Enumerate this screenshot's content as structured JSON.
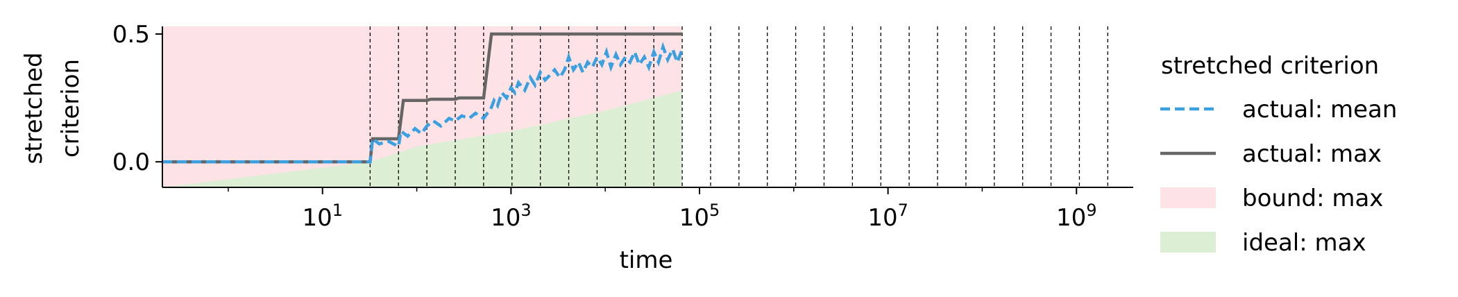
{
  "chart_data": {
    "type": "line",
    "xlabel": "time",
    "ylabel": [
      "stretched",
      "criterion"
    ],
    "xscale": "log",
    "xlim": [
      0.2,
      4000000000
    ],
    "ylim": [
      -0.1,
      0.53
    ],
    "x_ticks": [
      {
        "base": "10",
        "exp": "1",
        "value": 10
      },
      {
        "base": "10",
        "exp": "3",
        "value": 1000
      },
      {
        "base": "10",
        "exp": "5",
        "value": 100000
      },
      {
        "base": "10",
        "exp": "7",
        "value": 10000000
      },
      {
        "base": "10",
        "exp": "9",
        "value": 1000000000
      }
    ],
    "y_ticks": [
      {
        "label": "0.0",
        "value": 0.0
      },
      {
        "label": "0.5",
        "value": 0.5
      }
    ],
    "vlines": [
      32,
      64,
      128,
      256,
      512,
      1024,
      2048,
      4096,
      8192,
      16384,
      32768,
      65536,
      131072,
      262144,
      524288,
      1048576,
      2097152,
      4194304,
      8388608,
      16777216,
      33554432,
      67108864,
      134217728,
      268435456,
      536870912,
      1073741824,
      2147483648
    ],
    "legend_title": "stretched criterion",
    "legend_position": "right",
    "colors": {
      "mean": "#3aa0e0",
      "max": "#666666",
      "bound": "#fde2e6",
      "ideal": "#dcefd5"
    },
    "series": [
      {
        "name": "actual: mean",
        "style": "dashed",
        "x": [
          0.2,
          32,
          34,
          40,
          50,
          64,
          68,
          80,
          96,
          112,
          128,
          150,
          180,
          220,
          256,
          300,
          360,
          420,
          512,
          560,
          600,
          660,
          720,
          800,
          900,
          1000,
          1100,
          1200,
          1400,
          1600,
          1800,
          2048,
          2300,
          2600,
          2900,
          3300,
          3700,
          4096,
          4600,
          5200,
          5800,
          6500,
          7300,
          8192,
          9200,
          10300,
          11500,
          13000,
          14500,
          16384,
          18300,
          20500,
          23000,
          26000,
          29000,
          32768,
          36700,
          41000,
          46000,
          52000,
          58000,
          65536
        ],
        "y": [
          0.0,
          0.0,
          0.09,
          0.07,
          0.08,
          0.06,
          0.12,
          0.1,
          0.13,
          0.11,
          0.14,
          0.16,
          0.14,
          0.17,
          0.16,
          0.18,
          0.17,
          0.19,
          0.17,
          0.19,
          0.2,
          0.24,
          0.22,
          0.27,
          0.25,
          0.29,
          0.27,
          0.31,
          0.28,
          0.33,
          0.3,
          0.35,
          0.32,
          0.34,
          0.36,
          0.33,
          0.36,
          0.41,
          0.36,
          0.39,
          0.35,
          0.39,
          0.37,
          0.41,
          0.38,
          0.43,
          0.37,
          0.42,
          0.38,
          0.41,
          0.39,
          0.43,
          0.38,
          0.41,
          0.37,
          0.43,
          0.39,
          0.45,
          0.4,
          0.44,
          0.39,
          0.44
        ]
      },
      {
        "name": "actual: max",
        "style": "solid",
        "x": [
          0.2,
          32,
          34,
          64,
          72,
          128,
          140,
          256,
          280,
          512,
          620,
          800,
          65536
        ],
        "y": [
          0.0,
          0.0,
          0.09,
          0.09,
          0.24,
          0.24,
          0.245,
          0.245,
          0.25,
          0.25,
          0.5,
          0.5,
          0.5
        ]
      },
      {
        "name": "bound: max",
        "style": "area",
        "x": [
          0.2,
          32,
          34,
          65536
        ],
        "y": [
          0.53,
          0.53,
          0.53,
          0.53
        ]
      },
      {
        "name": "ideal: max",
        "style": "area",
        "x": [
          0.2,
          32,
          100,
          1000,
          10000,
          65536
        ],
        "y": [
          -0.1,
          0.0,
          0.06,
          0.12,
          0.2,
          0.28
        ]
      }
    ]
  }
}
